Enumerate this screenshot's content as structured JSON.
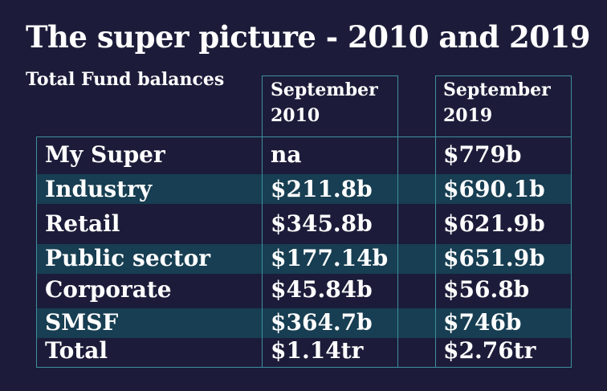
{
  "title": "The super picture - 2010 and 2019",
  "subtitle": "Total Fund balances",
  "columns": [
    {
      "line1": "September",
      "line2": "2010"
    },
    {
      "line1": "September",
      "line2": "2019"
    }
  ],
  "rows": [
    {
      "label": "My Super",
      "v2010": "na",
      "v2019": "$779b"
    },
    {
      "label": "Industry",
      "v2010": "$211.8b",
      "v2019": "$690.1b"
    },
    {
      "label": "Retail",
      "v2010": "$345.8b",
      "v2019": "$621.9b"
    },
    {
      "label": "Public sector",
      "v2010": "$177.14b",
      "v2019": "$651.9b"
    },
    {
      "label": "Corporate",
      "v2010": "$45.84b",
      "v2019": "$56.8b"
    },
    {
      "label": "SMSF",
      "v2010": "$364.7b",
      "v2019": "$746b"
    },
    {
      "label": "Total",
      "v2010": "$1.14tr",
      "v2019": "$2.76tr"
    }
  ],
  "colors": {
    "background": "#1c1c3a",
    "band": "#173e52",
    "rule": "#3f8f9d",
    "text": "#ffffff"
  }
}
